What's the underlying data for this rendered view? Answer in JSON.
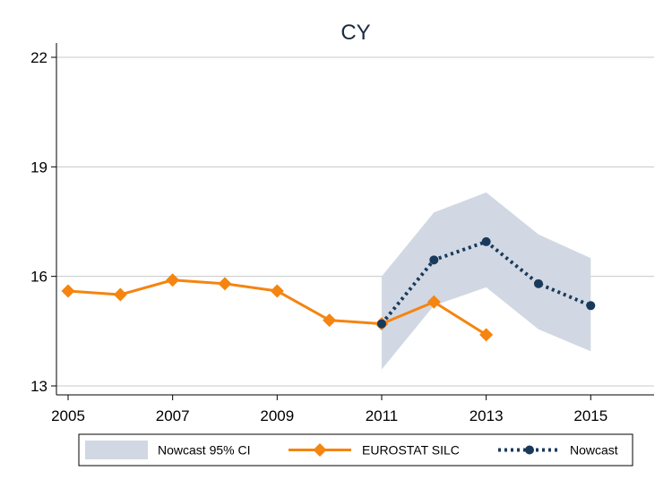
{
  "chart_data": {
    "type": "line",
    "title": "CY",
    "xlabel": "",
    "ylabel": "",
    "xlim": [
      2005,
      2016.2
    ],
    "ylim": [
      13,
      22.5
    ],
    "x_ticks": [
      "2005",
      "2007",
      "2009",
      "2011",
      "2013",
      "2015"
    ],
    "y_ticks": [
      "13",
      "16",
      "19",
      "22"
    ],
    "grid": "horizontal",
    "legend_position": "bottom",
    "ci_band": {
      "name": "Nowcast 95% CI",
      "color": "#d1d8e3",
      "x": [
        2011,
        2012,
        2013,
        2014,
        2015
      ],
      "lower": [
        13.45,
        15.2,
        15.7,
        14.55,
        13.95
      ],
      "upper": [
        16.0,
        17.75,
        18.3,
        17.15,
        16.5
      ]
    },
    "series": [
      {
        "name": "EUROSTAT SILC",
        "color": "#f58410",
        "style": "solid-diamond",
        "x": [
          2005,
          2006,
          2007,
          2008,
          2009,
          2010,
          2011,
          2012,
          2013
        ],
        "values": [
          15.6,
          15.5,
          15.9,
          15.8,
          15.6,
          14.8,
          14.7,
          15.3,
          14.4
        ]
      },
      {
        "name": "Nowcast",
        "color": "#1a3a5c",
        "style": "dotted-circle",
        "x": [
          2011,
          2012,
          2013,
          2014,
          2015
        ],
        "values": [
          14.7,
          16.45,
          16.95,
          15.8,
          15.2
        ]
      }
    ]
  }
}
